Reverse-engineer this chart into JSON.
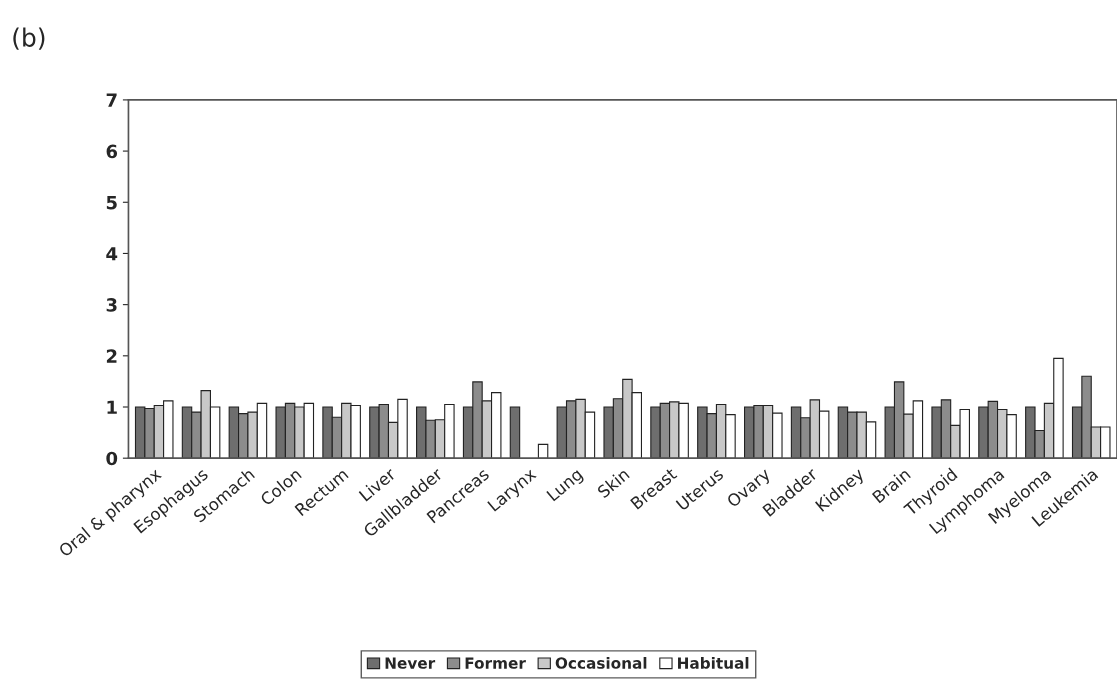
{
  "chart_data": {
    "type": "bar",
    "title": "(b)",
    "categories": [
      "Oral & pharynx",
      "Esophagus",
      "Stomach",
      "Colon",
      "Rectum",
      "Liver",
      "Gallbladder",
      "Pancreas",
      "Larynx",
      "Lung",
      "Skin",
      "Breast",
      "Uterus",
      "Ovary",
      "Bladder",
      "Kidney",
      "Brain",
      "Thyroid",
      "Lymphoma",
      "Myeloma",
      "Leukemia"
    ],
    "series": [
      {
        "name": "Never",
        "color": "#6e6e6e",
        "values": [
          1.0,
          1.0,
          1.0,
          1.0,
          1.0,
          1.0,
          1.0,
          1.0,
          1.0,
          1.0,
          1.0,
          1.0,
          1.0,
          1.0,
          1.0,
          1.0,
          1.0,
          1.0,
          1.0,
          1.0,
          1.0
        ]
      },
      {
        "name": "Former",
        "color": "#8c8c8c",
        "values": [
          0.97,
          0.9,
          0.87,
          1.07,
          0.8,
          1.05,
          0.74,
          1.49,
          null,
          1.12,
          1.16,
          1.07,
          0.87,
          1.03,
          0.79,
          0.9,
          1.49,
          1.14,
          1.11,
          0.54,
          1.6
        ]
      },
      {
        "name": "Occasional",
        "color": "#c8c8c8",
        "values": [
          1.03,
          1.32,
          0.9,
          1.0,
          1.07,
          0.7,
          0.75,
          1.12,
          null,
          1.15,
          1.54,
          1.1,
          1.05,
          1.03,
          1.14,
          0.9,
          0.86,
          0.64,
          0.95,
          1.07,
          0.61
        ]
      },
      {
        "name": "Habitual",
        "color": "#ffffff",
        "values": [
          1.12,
          1.0,
          1.07,
          1.07,
          1.03,
          1.15,
          1.05,
          1.28,
          0.27,
          0.9,
          1.28,
          1.07,
          0.85,
          0.88,
          0.92,
          0.71,
          1.12,
          0.95,
          0.85,
          1.95,
          0.61
        ]
      }
    ],
    "ylim": [
      0,
      7
    ],
    "yticks": [
      0,
      1,
      2,
      3,
      4,
      5,
      6,
      7
    ],
    "grid": false,
    "legend": "bottom"
  }
}
